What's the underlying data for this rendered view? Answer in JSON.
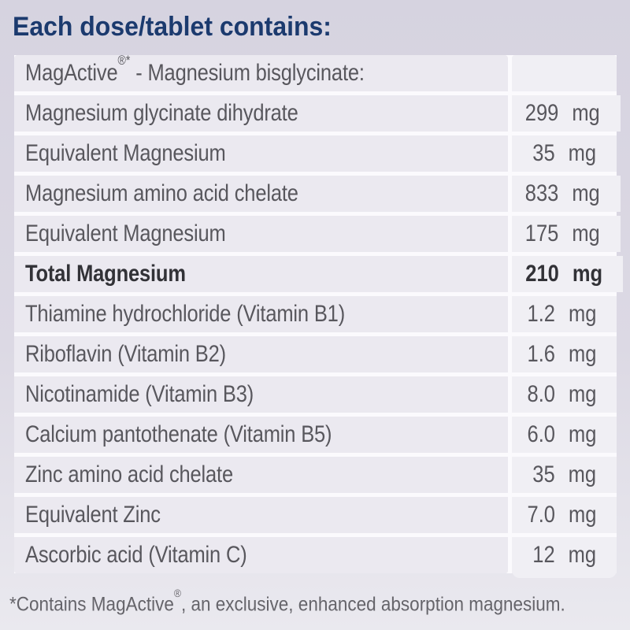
{
  "header": {
    "title": "Each dose/tablet contains:"
  },
  "table": {
    "rows": [
      {
        "label_pre": "MagActive",
        "label_sup": "®*",
        "label_post": " - Magnesium bisglycinate:",
        "amount": "",
        "unit": ""
      },
      {
        "label": "Magnesium glycinate dihydrate",
        "amount": "299",
        "unit": "mg"
      },
      {
        "label": "Equivalent Magnesium",
        "amount": "35",
        "unit": "mg"
      },
      {
        "label": "Magnesium amino acid chelate",
        "amount": "833",
        "unit": "mg"
      },
      {
        "label": "Equivalent Magnesium",
        "amount": "175",
        "unit": "mg"
      },
      {
        "label": "Total Magnesium",
        "amount": "210",
        "unit": "mg",
        "bold": true
      },
      {
        "label": "Thiamine hydrochloride (Vitamin B1)",
        "amount": "1.2",
        "unit": "mg"
      },
      {
        "label": "Riboflavin (Vitamin B2)",
        "amount": "1.6",
        "unit": "mg"
      },
      {
        "label": "Nicotinamide (Vitamin B3)",
        "amount": "8.0",
        "unit": "mg"
      },
      {
        "label": "Calcium pantothenate (Vitamin B5)",
        "amount": "6.0",
        "unit": "mg"
      },
      {
        "label": "Zinc amino acid chelate",
        "amount": "35",
        "unit": "mg"
      },
      {
        "label": "Equivalent Zinc",
        "amount": "7.0",
        "unit": "mg"
      },
      {
        "label": "Ascorbic acid (Vitamin C)",
        "amount": "12",
        "unit": "mg"
      }
    ]
  },
  "footnote": {
    "pre": "*Contains MagActive",
    "sup": "®",
    "post": ", an exclusive, enhanced absorption magnesium."
  },
  "colors": {
    "page_bg_top": "#d6d3e0",
    "page_bg_mid": "#dcd9e4",
    "page_bg_bottom": "#eae9ef",
    "row_bg": "#ebe9f0",
    "value_bg": "#f0eff4",
    "gap_bg": "#fbfafd",
    "title_color": "#1b3a6e",
    "text_color": "#58575d",
    "text_bold_color": "#323237",
    "footnote_color": "#65646a"
  }
}
